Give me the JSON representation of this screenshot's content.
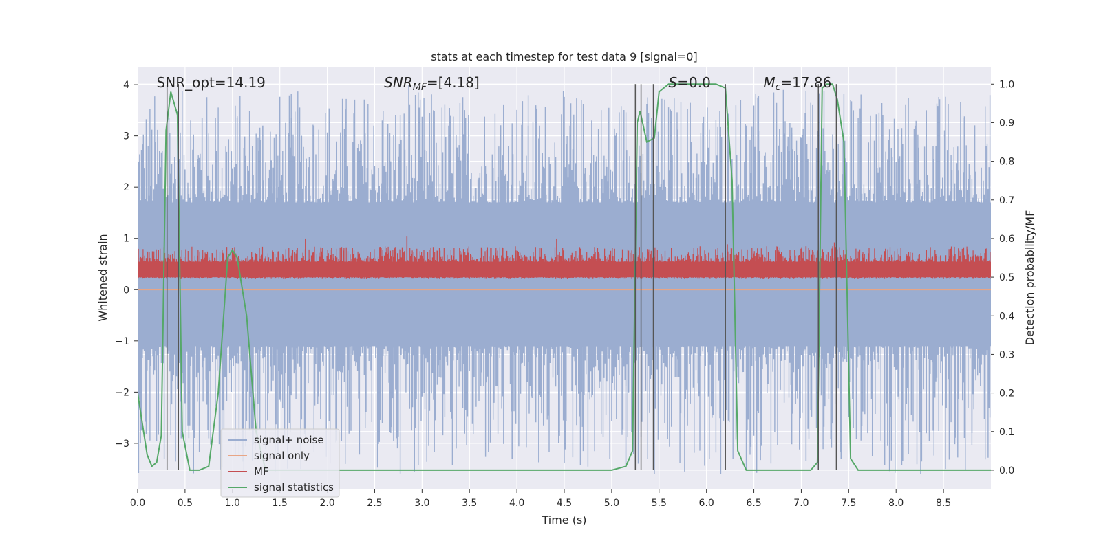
{
  "chart_data": {
    "type": "line",
    "title": "stats at each timestep for test data 9 [signal=0]",
    "xlabel": "Time (s)",
    "ylabel_left": "Whitened strain",
    "ylabel_right": "Detection probability/MF",
    "xlim": [
      0.0,
      9.0
    ],
    "ylim_left": [
      -3.9,
      4.35
    ],
    "ylim_right": [
      -0.05,
      1.045
    ],
    "x_ticks": [
      "0.0",
      "0.5",
      "1.0",
      "1.5",
      "2.0",
      "2.5",
      "3.0",
      "3.5",
      "4.0",
      "4.5",
      "5.0",
      "5.5",
      "6.0",
      "6.5",
      "7.0",
      "7.5",
      "8.0",
      "8.5"
    ],
    "y_ticks_left": [
      "−3",
      "−2",
      "−1",
      "0",
      "1",
      "2",
      "3",
      "4"
    ],
    "y_ticks_right": [
      "0.0",
      "0.1",
      "0.2",
      "0.3",
      "0.4",
      "0.5",
      "0.6",
      "0.7",
      "0.8",
      "0.9",
      "1.0"
    ],
    "grid": true,
    "legend_position": "lower-left",
    "annotations": [
      {
        "parts": [
          {
            "t": "SNR_opt=14.19",
            "i": false
          }
        ],
        "x": 0.2
      },
      {
        "parts": [
          {
            "t": "SNR",
            "i": true
          },
          {
            "t": "MF",
            "i": true,
            "sub": true
          },
          {
            "t": "=[4.18]",
            "i": false
          }
        ],
        "x": 2.6
      },
      {
        "parts": [
          {
            "t": "S",
            "i": true
          },
          {
            "t": "=0.0",
            "i": false
          }
        ],
        "x": 5.6
      },
      {
        "parts": [
          {
            "t": "M",
            "i": true
          },
          {
            "t": "c",
            "i": true,
            "sub": true
          },
          {
            "t": "=17.86",
            "i": false
          }
        ],
        "x": 6.6
      }
    ],
    "vlines": [
      0.31,
      0.43,
      5.25,
      5.31,
      5.44,
      6.2,
      7.18,
      7.37
    ],
    "series": [
      {
        "name": "signal+ noise",
        "color": "#9badd0",
        "axis": "left",
        "kind": "noise",
        "fill_range": [
          -1.1,
          1.7
        ],
        "spike_range": [
          -3.6,
          3.9
        ],
        "peaks": [
          [
            0.33,
            3.35
          ],
          [
            0.56,
            3.3
          ],
          [
            0.68,
            3.35
          ],
          [
            0.82,
            3.35
          ],
          [
            1.05,
            3.35
          ],
          [
            1.32,
            3.2
          ],
          [
            1.62,
            3.35
          ],
          [
            1.86,
            3.2
          ],
          [
            2.58,
            3.3
          ],
          [
            2.86,
            4.0
          ],
          [
            2.93,
            3.8
          ],
          [
            3.12,
            3.5
          ],
          [
            3.86,
            3.6
          ],
          [
            4.12,
            3.2
          ],
          [
            4.56,
            3.2
          ],
          [
            4.79,
            3.3
          ],
          [
            5.05,
            3.05
          ],
          [
            5.62,
            3.5
          ],
          [
            5.96,
            3.25
          ],
          [
            6.36,
            3.7
          ],
          [
            6.55,
            3.1
          ],
          [
            6.9,
            3.05
          ],
          [
            7.12,
            3.6
          ],
          [
            7.55,
            3.5
          ],
          [
            7.86,
            3.4
          ],
          [
            8.2,
            3.2
          ],
          [
            8.45,
            3.5
          ],
          [
            8.72,
            3.35
          ],
          [
            8.95,
            2.8
          ],
          [
            0.46,
            -2.9
          ],
          [
            0.75,
            -2.9
          ],
          [
            1.18,
            -2.75
          ],
          [
            1.55,
            -3.0
          ],
          [
            2.15,
            -2.95
          ],
          [
            2.7,
            -2.95
          ],
          [
            3.36,
            -3.1
          ],
          [
            3.95,
            -3.3
          ],
          [
            4.7,
            -3.15
          ],
          [
            5.15,
            -3.45
          ],
          [
            5.45,
            -3.6
          ],
          [
            5.77,
            -3.55
          ],
          [
            6.15,
            -3.6
          ],
          [
            6.58,
            -3.05
          ],
          [
            7.05,
            -3.35
          ],
          [
            7.42,
            -3.3
          ],
          [
            7.75,
            -3.25
          ],
          [
            8.26,
            -3.6
          ],
          [
            8.52,
            -3.5
          ],
          [
            8.8,
            -2.8
          ]
        ]
      },
      {
        "name": "signal only",
        "color": "#e8a585",
        "axis": "left",
        "kind": "flat",
        "value": 0.0
      },
      {
        "name": "MF",
        "color": "#c44e52",
        "axis": "right",
        "kind": "band",
        "fill_range": [
          0.5,
          0.54
        ],
        "spike_range": [
          0.495,
          0.58
        ],
        "peaks": [
          [
            1.77,
            0.6
          ],
          [
            2.84,
            0.605
          ],
          [
            4.42,
            0.6
          ],
          [
            7.05,
            0.58
          ],
          [
            7.35,
            0.59
          ],
          [
            6.22,
            0.585
          ]
        ]
      },
      {
        "name": "signal statistics",
        "color": "#55a868",
        "axis": "right",
        "kind": "line",
        "points": [
          [
            0.0,
            0.2
          ],
          [
            0.05,
            0.12
          ],
          [
            0.1,
            0.04
          ],
          [
            0.15,
            0.01
          ],
          [
            0.2,
            0.02
          ],
          [
            0.25,
            0.09
          ],
          [
            0.3,
            0.88
          ],
          [
            0.35,
            0.98
          ],
          [
            0.42,
            0.92
          ],
          [
            0.47,
            0.1
          ],
          [
            0.55,
            0.0
          ],
          [
            0.65,
            0.0
          ],
          [
            0.75,
            0.01
          ],
          [
            0.85,
            0.2
          ],
          [
            0.95,
            0.55
          ],
          [
            1.0,
            0.57
          ],
          [
            1.05,
            0.55
          ],
          [
            1.15,
            0.4
          ],
          [
            1.25,
            0.1
          ],
          [
            1.35,
            0.0
          ],
          [
            2.0,
            0.0
          ],
          [
            3.0,
            0.0
          ],
          [
            4.0,
            0.0
          ],
          [
            5.0,
            0.0
          ],
          [
            5.15,
            0.01
          ],
          [
            5.22,
            0.05
          ],
          [
            5.27,
            0.9
          ],
          [
            5.3,
            0.93
          ],
          [
            5.37,
            0.85
          ],
          [
            5.45,
            0.86
          ],
          [
            5.5,
            0.98
          ],
          [
            5.6,
            1.0
          ],
          [
            6.1,
            1.0
          ],
          [
            6.2,
            0.99
          ],
          [
            6.27,
            0.75
          ],
          [
            6.33,
            0.05
          ],
          [
            6.42,
            0.0
          ],
          [
            7.1,
            0.0
          ],
          [
            7.17,
            0.02
          ],
          [
            7.22,
            0.99
          ],
          [
            7.27,
            1.0
          ],
          [
            7.33,
            1.0
          ],
          [
            7.38,
            0.96
          ],
          [
            7.45,
            0.85
          ],
          [
            7.52,
            0.03
          ],
          [
            7.6,
            0.0
          ],
          [
            9.0,
            0.0
          ]
        ]
      }
    ]
  }
}
